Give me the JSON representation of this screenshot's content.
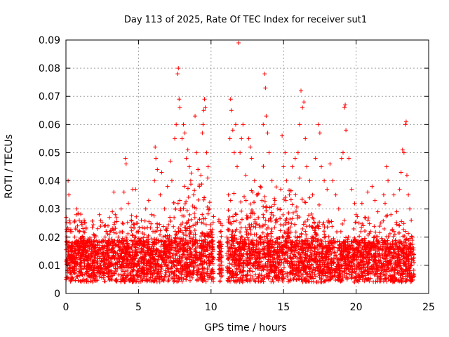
{
  "chart_data": {
    "type": "scatter",
    "title": "Day 113 of 2025, Rate Of TEC Index for receiver sut1",
    "xlabel": "GPS time / hours",
    "ylabel": "ROTI / TECUs",
    "xlim": [
      0,
      25
    ],
    "ylim": [
      0,
      0.09
    ],
    "x_ticks": [
      "0",
      "5",
      "10",
      "15",
      "20",
      "25"
    ],
    "y_ticks": [
      "0",
      "0.01",
      "0.02",
      "0.03",
      "0.04",
      "0.05",
      "0.06",
      "0.07",
      "0.08",
      "0.09"
    ],
    "x_tick_values": [
      0,
      5,
      10,
      15,
      20,
      25
    ],
    "y_tick_values": [
      0,
      0.01,
      0.02,
      0.03,
      0.04,
      0.05,
      0.06,
      0.07,
      0.08,
      0.09
    ],
    "grid": true,
    "marker": "plus",
    "color": "#ff0000",
    "series": [
      {
        "values": [
          [
            0.05,
            0.012
          ],
          [
            0.1,
            0.018
          ],
          [
            0.15,
            0.04
          ],
          [
            0.2,
            0.035
          ],
          [
            0.25,
            0.026
          ],
          [
            0.3,
            0.022
          ],
          [
            0.35,
            0.015
          ],
          [
            0.5,
            0.012
          ],
          [
            0.6,
            0.02
          ],
          [
            0.7,
            0.028
          ],
          [
            0.75,
            0.03
          ],
          [
            0.8,
            0.024
          ],
          [
            0.9,
            0.016
          ],
          [
            1.0,
            0.011
          ],
          [
            1.2,
            0.022
          ],
          [
            1.3,
            0.025
          ],
          [
            1.5,
            0.018
          ],
          [
            1.7,
            0.014
          ],
          [
            1.9,
            0.021
          ],
          [
            2.0,
            0.016
          ],
          [
            2.2,
            0.023
          ],
          [
            2.3,
            0.028
          ],
          [
            2.5,
            0.017
          ],
          [
            2.7,
            0.02
          ],
          [
            2.9,
            0.024
          ],
          [
            3.0,
            0.027
          ],
          [
            3.2,
            0.029
          ],
          [
            3.3,
            0.036
          ],
          [
            3.4,
            0.028
          ],
          [
            3.6,
            0.02
          ],
          [
            3.8,
            0.03
          ],
          [
            3.9,
            0.025
          ],
          [
            4.0,
            0.036
          ],
          [
            4.1,
            0.048
          ],
          [
            4.15,
            0.046
          ],
          [
            4.3,
            0.032
          ],
          [
            4.5,
            0.026
          ],
          [
            4.6,
            0.037
          ],
          [
            4.8,
            0.037
          ],
          [
            5.0,
            0.022
          ],
          [
            5.2,
            0.026
          ],
          [
            5.4,
            0.021
          ],
          [
            5.5,
            0.03
          ],
          [
            5.7,
            0.033
          ],
          [
            5.9,
            0.028
          ],
          [
            6.0,
            0.022
          ],
          [
            6.1,
            0.04
          ],
          [
            6.15,
            0.052
          ],
          [
            6.2,
            0.048
          ],
          [
            6.3,
            0.044
          ],
          [
            6.5,
            0.035
          ],
          [
            6.6,
            0.043
          ],
          [
            6.8,
            0.03
          ],
          [
            7.0,
            0.038
          ],
          [
            7.2,
            0.047
          ],
          [
            7.3,
            0.04
          ],
          [
            7.5,
            0.055
          ],
          [
            7.6,
            0.06
          ],
          [
            7.7,
            0.078
          ],
          [
            7.75,
            0.08
          ],
          [
            7.8,
            0.069
          ],
          [
            7.85,
            0.066
          ],
          [
            8.0,
            0.055
          ],
          [
            8.1,
            0.06
          ],
          [
            8.2,
            0.057
          ],
          [
            8.3,
            0.048
          ],
          [
            8.4,
            0.051
          ],
          [
            8.5,
            0.045
          ],
          [
            8.6,
            0.04
          ],
          [
            8.8,
            0.035
          ],
          [
            8.9,
            0.063
          ],
          [
            9.0,
            0.05
          ],
          [
            9.1,
            0.044
          ],
          [
            9.2,
            0.038
          ],
          [
            9.3,
            0.042
          ],
          [
            9.4,
            0.057
          ],
          [
            9.45,
            0.06
          ],
          [
            9.5,
            0.065
          ],
          [
            9.55,
            0.069
          ],
          [
            9.6,
            0.066
          ],
          [
            9.7,
            0.05
          ],
          [
            9.8,
            0.045
          ],
          [
            9.9,
            0.03
          ],
          [
            10.0,
            0.022
          ],
          [
            10.1,
            0.016
          ],
          [
            10.5,
            0.012
          ],
          [
            10.6,
            0.018
          ],
          [
            10.7,
            0.015
          ],
          [
            11.1,
            0.02
          ],
          [
            11.2,
            0.035
          ],
          [
            11.3,
            0.055
          ],
          [
            11.35,
            0.069
          ],
          [
            11.4,
            0.065
          ],
          [
            11.5,
            0.058
          ],
          [
            11.6,
            0.05
          ],
          [
            11.7,
            0.06
          ],
          [
            11.8,
            0.045
          ],
          [
            11.9,
            0.089
          ],
          [
            12.0,
            0.05
          ],
          [
            12.1,
            0.055
          ],
          [
            12.2,
            0.06
          ],
          [
            12.4,
            0.042
          ],
          [
            12.6,
            0.055
          ],
          [
            12.7,
            0.052
          ],
          [
            12.8,
            0.048
          ],
          [
            13.0,
            0.04
          ],
          [
            13.2,
            0.035
          ],
          [
            13.4,
            0.038
          ],
          [
            13.6,
            0.06
          ],
          [
            13.7,
            0.078
          ],
          [
            13.75,
            0.073
          ],
          [
            13.8,
            0.063
          ],
          [
            13.9,
            0.057
          ],
          [
            14.0,
            0.05
          ],
          [
            14.2,
            0.04
          ],
          [
            14.4,
            0.033
          ],
          [
            14.6,
            0.03
          ],
          [
            14.8,
            0.037
          ],
          [
            14.9,
            0.056
          ],
          [
            15.0,
            0.045
          ],
          [
            15.1,
            0.05
          ],
          [
            15.2,
            0.04
          ],
          [
            15.4,
            0.035
          ],
          [
            15.6,
            0.045
          ],
          [
            15.8,
            0.048
          ],
          [
            16.0,
            0.05
          ],
          [
            16.1,
            0.06
          ],
          [
            16.2,
            0.072
          ],
          [
            16.3,
            0.066
          ],
          [
            16.4,
            0.068
          ],
          [
            16.5,
            0.055
          ],
          [
            16.6,
            0.045
          ],
          [
            16.8,
            0.04
          ],
          [
            17.0,
            0.035
          ],
          [
            17.2,
            0.048
          ],
          [
            17.4,
            0.06
          ],
          [
            17.5,
            0.057
          ],
          [
            17.6,
            0.045
          ],
          [
            17.8,
            0.04
          ],
          [
            18.0,
            0.037
          ],
          [
            18.2,
            0.046
          ],
          [
            18.4,
            0.04
          ],
          [
            18.6,
            0.035
          ],
          [
            18.8,
            0.03
          ],
          [
            19.0,
            0.048
          ],
          [
            19.1,
            0.05
          ],
          [
            19.2,
            0.066
          ],
          [
            19.25,
            0.067
          ],
          [
            19.3,
            0.058
          ],
          [
            19.5,
            0.048
          ],
          [
            19.7,
            0.037
          ],
          [
            19.9,
            0.032
          ],
          [
            20.0,
            0.028
          ],
          [
            20.2,
            0.025
          ],
          [
            20.4,
            0.032
          ],
          [
            20.6,
            0.027
          ],
          [
            20.8,
            0.036
          ],
          [
            21.0,
            0.022
          ],
          [
            21.1,
            0.038
          ],
          [
            21.3,
            0.033
          ],
          [
            21.5,
            0.029
          ],
          [
            21.7,
            0.025
          ],
          [
            21.9,
            0.035
          ],
          [
            22.0,
            0.032
          ],
          [
            22.1,
            0.045
          ],
          [
            22.2,
            0.04
          ],
          [
            22.4,
            0.028
          ],
          [
            22.6,
            0.035
          ],
          [
            22.8,
            0.029
          ],
          [
            23.0,
            0.037
          ],
          [
            23.1,
            0.043
          ],
          [
            23.2,
            0.051
          ],
          [
            23.3,
            0.05
          ],
          [
            23.4,
            0.06
          ],
          [
            23.45,
            0.061
          ],
          [
            23.5,
            0.042
          ],
          [
            23.6,
            0.035
          ],
          [
            23.7,
            0.03
          ],
          [
            23.8,
            0.026
          ],
          [
            23.9,
            0.02
          ]
        ]
      }
    ]
  }
}
